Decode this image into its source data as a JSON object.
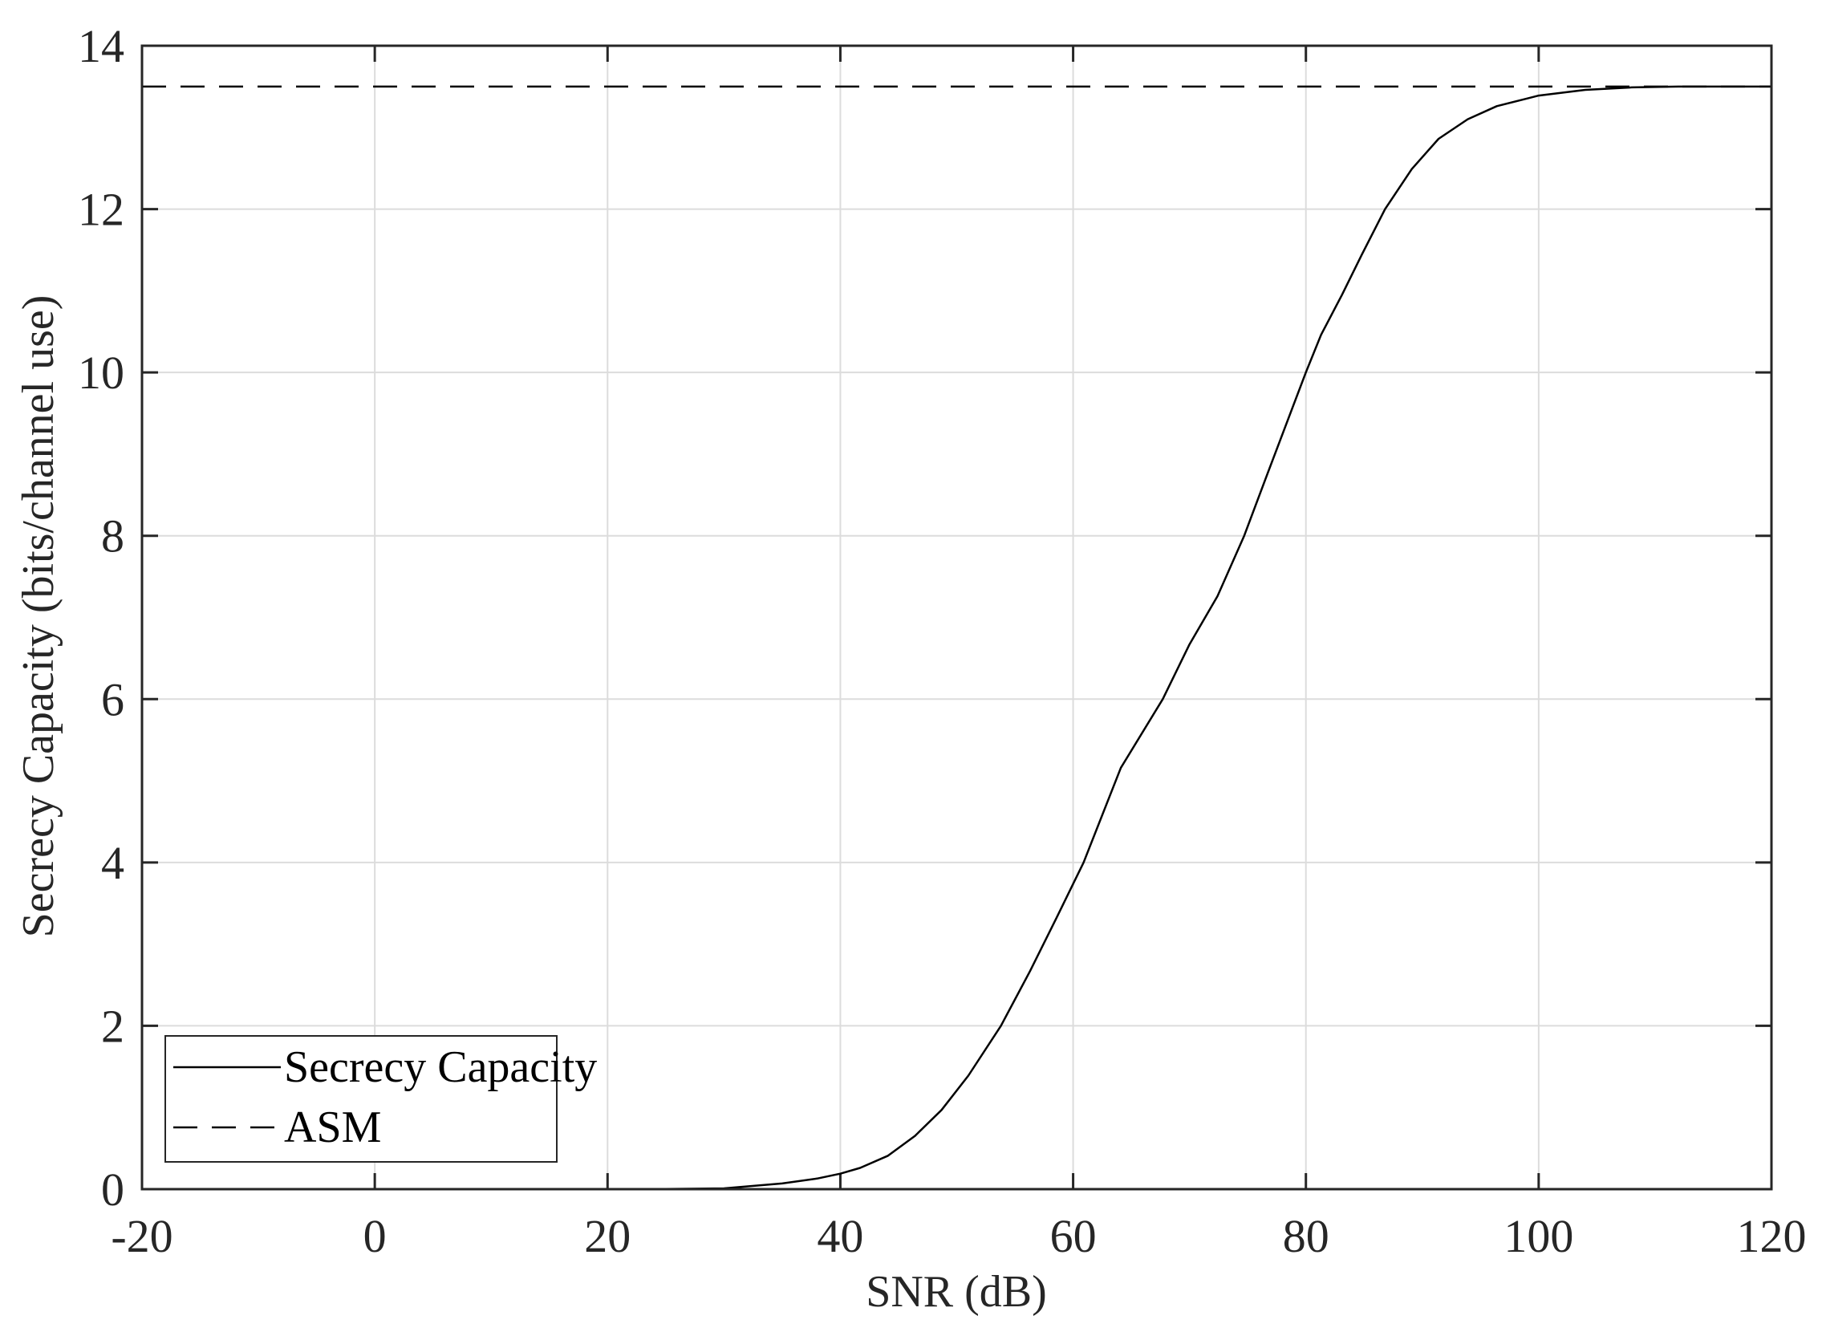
{
  "chart_data": {
    "type": "line",
    "title": "",
    "xlabel": "SNR (dB)",
    "ylabel": "Secrecy Capacity (bits/channel use)",
    "xlim": [
      -20,
      120
    ],
    "ylim": [
      0,
      14
    ],
    "xticks": [
      -20,
      0,
      20,
      40,
      60,
      80,
      100,
      120
    ],
    "yticks": [
      0,
      2,
      4,
      6,
      8,
      10,
      12,
      14
    ],
    "grid": true,
    "legend_position": "lower left",
    "series": [
      {
        "name": "Secrecy Capacity",
        "style": "solid",
        "color": "#000000",
        "x": [
          20,
          25,
          30,
          35,
          38,
          40,
          41.7,
          44.1,
          46.4,
          48.7,
          51.0,
          53.8,
          56.3,
          58.5,
          60.9,
          64.1,
          67.7,
          70.0,
          72.4,
          74.7,
          76.7,
          78.8,
          80.0,
          81.3,
          83.1,
          84.8,
          86.8,
          89.1,
          91.4,
          93.9,
          96.4,
          100,
          104,
          108,
          112,
          116,
          120
        ],
        "y": [
          0.0,
          0.003,
          0.01,
          0.07,
          0.13,
          0.19,
          0.26,
          0.41,
          0.65,
          0.97,
          1.39,
          2.0,
          2.67,
          3.3,
          4.0,
          5.16,
          6.0,
          6.67,
          7.26,
          8.0,
          8.76,
          9.55,
          10.0,
          10.46,
          10.95,
          11.44,
          12.0,
          12.49,
          12.86,
          13.1,
          13.26,
          13.39,
          13.46,
          13.49,
          13.5,
          13.5,
          13.5
        ]
      },
      {
        "name": "ASM",
        "style": "dashed",
        "color": "#000000",
        "x": [
          -20,
          120
        ],
        "y": [
          13.5,
          13.5
        ]
      }
    ]
  },
  "legend": {
    "items": [
      {
        "label": "Secrecy Capacity",
        "style": "solid"
      },
      {
        "label": "ASM",
        "style": "dashed"
      }
    ]
  },
  "colors": {
    "axis": "#262626",
    "grid": "#dcdcdc",
    "line": "#000000",
    "background": "#ffffff"
  }
}
